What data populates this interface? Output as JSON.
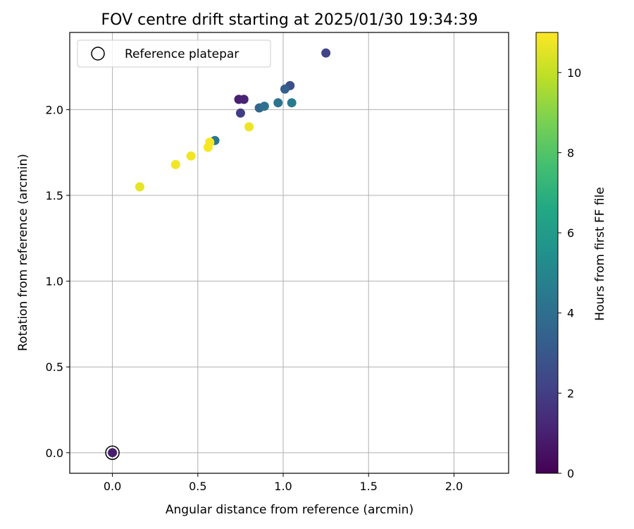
{
  "chart_data": {
    "type": "scatter",
    "title": "FOV centre drift starting at 2025/01/30 19:34:39",
    "xlabel": "Angular distance from reference (arcmin)",
    "ylabel": "Rotation from reference (arcmin)",
    "xlim": [
      -0.25,
      2.32
    ],
    "ylim": [
      -0.12,
      2.45
    ],
    "xticks": [
      "0.0",
      "0.5",
      "1.0",
      "1.5",
      "2.0"
    ],
    "yticks": [
      "0.0",
      "0.5",
      "1.0",
      "1.5",
      "2.0"
    ],
    "grid": true,
    "legend": {
      "position": "top-left",
      "entries": [
        "Reference platepar"
      ]
    },
    "reference_point": {
      "x": 0.0,
      "y": 0.0
    },
    "colorbar": {
      "label": "Hours from first FF file",
      "colormap": "viridis",
      "range": [
        0,
        11
      ],
      "ticks": [
        "0",
        "2",
        "4",
        "6",
        "8",
        "10"
      ]
    },
    "points": [
      {
        "x": 0.0,
        "y": 0.0,
        "hours": 0.9
      },
      {
        "x": 0.74,
        "y": 2.06,
        "hours": 1.0
      },
      {
        "x": 0.77,
        "y": 2.06,
        "hours": 1.1
      },
      {
        "x": 0.75,
        "y": 1.98,
        "hours": 2.0
      },
      {
        "x": 1.25,
        "y": 2.33,
        "hours": 2.2
      },
      {
        "x": 1.04,
        "y": 2.14,
        "hours": 2.6
      },
      {
        "x": 1.01,
        "y": 2.12,
        "hours": 3.3
      },
      {
        "x": 0.86,
        "y": 2.01,
        "hours": 3.6
      },
      {
        "x": 0.89,
        "y": 2.02,
        "hours": 4.1
      },
      {
        "x": 0.97,
        "y": 2.04,
        "hours": 4.2
      },
      {
        "x": 1.05,
        "y": 2.04,
        "hours": 4.5
      },
      {
        "x": 0.6,
        "y": 1.82,
        "hours": 4.3
      },
      {
        "x": 0.16,
        "y": 1.55,
        "hours": 10.6
      },
      {
        "x": 0.37,
        "y": 1.68,
        "hours": 10.8
      },
      {
        "x": 0.46,
        "y": 1.73,
        "hours": 10.8
      },
      {
        "x": 0.56,
        "y": 1.78,
        "hours": 10.9
      },
      {
        "x": 0.57,
        "y": 1.81,
        "hours": 10.9
      },
      {
        "x": 0.8,
        "y": 1.9,
        "hours": 10.7
      }
    ]
  }
}
